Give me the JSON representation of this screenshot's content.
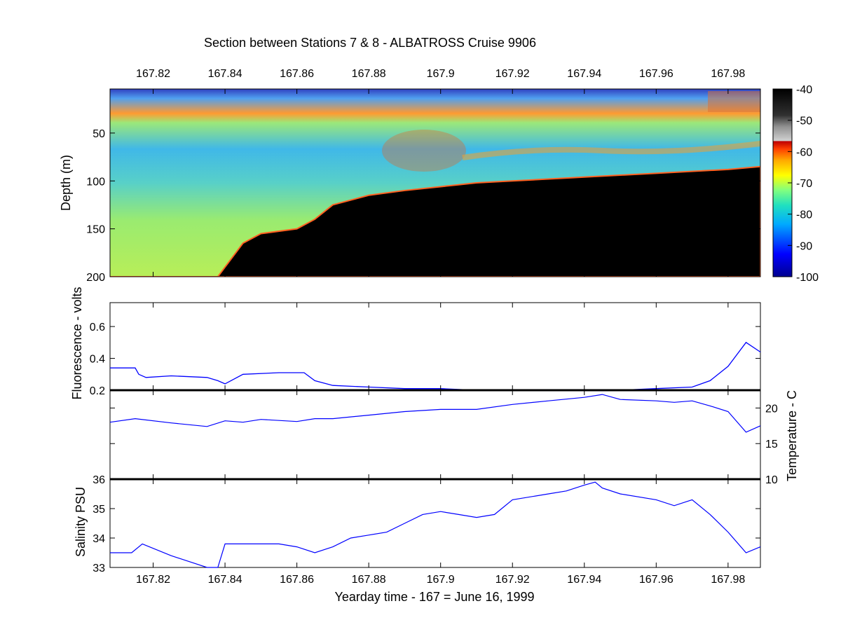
{
  "figure": {
    "title": "Section between Stations 7 & 8 - ALBATROSS Cruise 9906",
    "xlabel": "Yearday time - 167 = June 16, 1999",
    "x_ticks": [
      "167.82",
      "167.84",
      "167.86",
      "167.88",
      "167.9",
      "167.92",
      "167.94",
      "167.96",
      "167.98"
    ],
    "xlim": [
      167.808,
      167.989
    ],
    "colors": {
      "line": "#0000ff",
      "axis": "#000000",
      "seafloor": "#000000"
    }
  },
  "chart_data": [
    {
      "type": "heatmap",
      "ylabel": "Depth (m)",
      "y_ticks": [
        "50",
        "100",
        "150",
        "200"
      ],
      "ylim": [
        200,
        4
      ],
      "colorbar": {
        "ticks": [
          "-40",
          "-50",
          "-60",
          "-70",
          "-80",
          "-90",
          "-100"
        ],
        "range": [
          -100,
          -40
        ],
        "colormap": "jet with black/gray above -57"
      },
      "x": [
        167.808,
        167.82,
        167.83,
        167.838,
        167.84,
        167.845,
        167.85,
        167.86,
        167.865,
        167.87,
        167.88,
        167.89,
        167.9,
        167.905,
        167.91,
        167.92,
        167.94,
        167.96,
        167.98,
        167.989
      ],
      "bottom_depth_m": [
        200,
        200,
        200,
        200,
        190,
        165,
        155,
        150,
        140,
        125,
        115,
        110,
        106,
        104,
        102,
        100,
        96,
        92,
        88,
        85
      ],
      "background_sv_db": -78
    },
    {
      "type": "line",
      "ylabel": "Fluorescence - volts",
      "y_ticks": [
        "0.2",
        "0.4",
        "0.6"
      ],
      "ylim": [
        0.2,
        0.75
      ],
      "x": [
        167.808,
        167.815,
        167.816,
        167.818,
        167.825,
        167.835,
        167.838,
        167.84,
        167.845,
        167.855,
        167.862,
        167.865,
        167.87,
        167.88,
        167.89,
        167.9,
        167.91,
        167.92,
        167.93,
        167.94,
        167.95,
        167.96,
        167.97,
        167.975,
        167.98,
        167.985,
        167.989
      ],
      "y": [
        0.34,
        0.34,
        0.3,
        0.28,
        0.29,
        0.28,
        0.26,
        0.24,
        0.3,
        0.31,
        0.31,
        0.26,
        0.23,
        0.22,
        0.21,
        0.21,
        0.2,
        0.2,
        0.2,
        0.2,
        0.2,
        0.21,
        0.22,
        0.26,
        0.35,
        0.5,
        0.44
      ]
    },
    {
      "type": "line",
      "ylabel": "Temperature - C",
      "y_ticks": [
        "10",
        "15",
        "20"
      ],
      "ylim": [
        10,
        22.5
      ],
      "x": [
        167.808,
        167.815,
        167.825,
        167.835,
        167.84,
        167.845,
        167.85,
        167.86,
        167.865,
        167.87,
        167.88,
        167.89,
        167.9,
        167.91,
        167.92,
        167.93,
        167.94,
        167.945,
        167.95,
        167.96,
        167.965,
        167.97,
        167.975,
        167.98,
        167.985,
        167.989
      ],
      "y": [
        18.0,
        18.5,
        17.9,
        17.4,
        18.2,
        18.0,
        18.4,
        18.1,
        18.5,
        18.5,
        19.0,
        19.5,
        19.8,
        19.8,
        20.5,
        21.0,
        21.5,
        21.9,
        21.2,
        21.0,
        20.8,
        21.0,
        20.3,
        19.5,
        16.6,
        17.5
      ]
    },
    {
      "type": "line",
      "ylabel": "Salinity PSU",
      "y_ticks": [
        "33",
        "34",
        "35",
        "36"
      ],
      "ylim": [
        33,
        36
      ],
      "x": [
        167.808,
        167.814,
        167.817,
        167.825,
        167.83,
        167.835,
        167.838,
        167.84,
        167.845,
        167.85,
        167.855,
        167.86,
        167.865,
        167.87,
        167.875,
        167.88,
        167.885,
        167.89,
        167.895,
        167.9,
        167.905,
        167.91,
        167.915,
        167.92,
        167.93,
        167.935,
        167.94,
        167.943,
        167.945,
        167.95,
        167.96,
        167.965,
        167.97,
        167.975,
        167.98,
        167.985,
        167.989
      ],
      "y": [
        33.5,
        33.5,
        33.8,
        33.4,
        33.2,
        33.0,
        33.0,
        33.8,
        33.8,
        33.8,
        33.8,
        33.7,
        33.5,
        33.7,
        34.0,
        34.1,
        34.2,
        34.5,
        34.8,
        34.9,
        34.8,
        34.7,
        34.8,
        35.3,
        35.5,
        35.6,
        35.8,
        35.9,
        35.7,
        35.5,
        35.3,
        35.1,
        35.3,
        34.8,
        34.2,
        33.5,
        33.7
      ]
    }
  ]
}
